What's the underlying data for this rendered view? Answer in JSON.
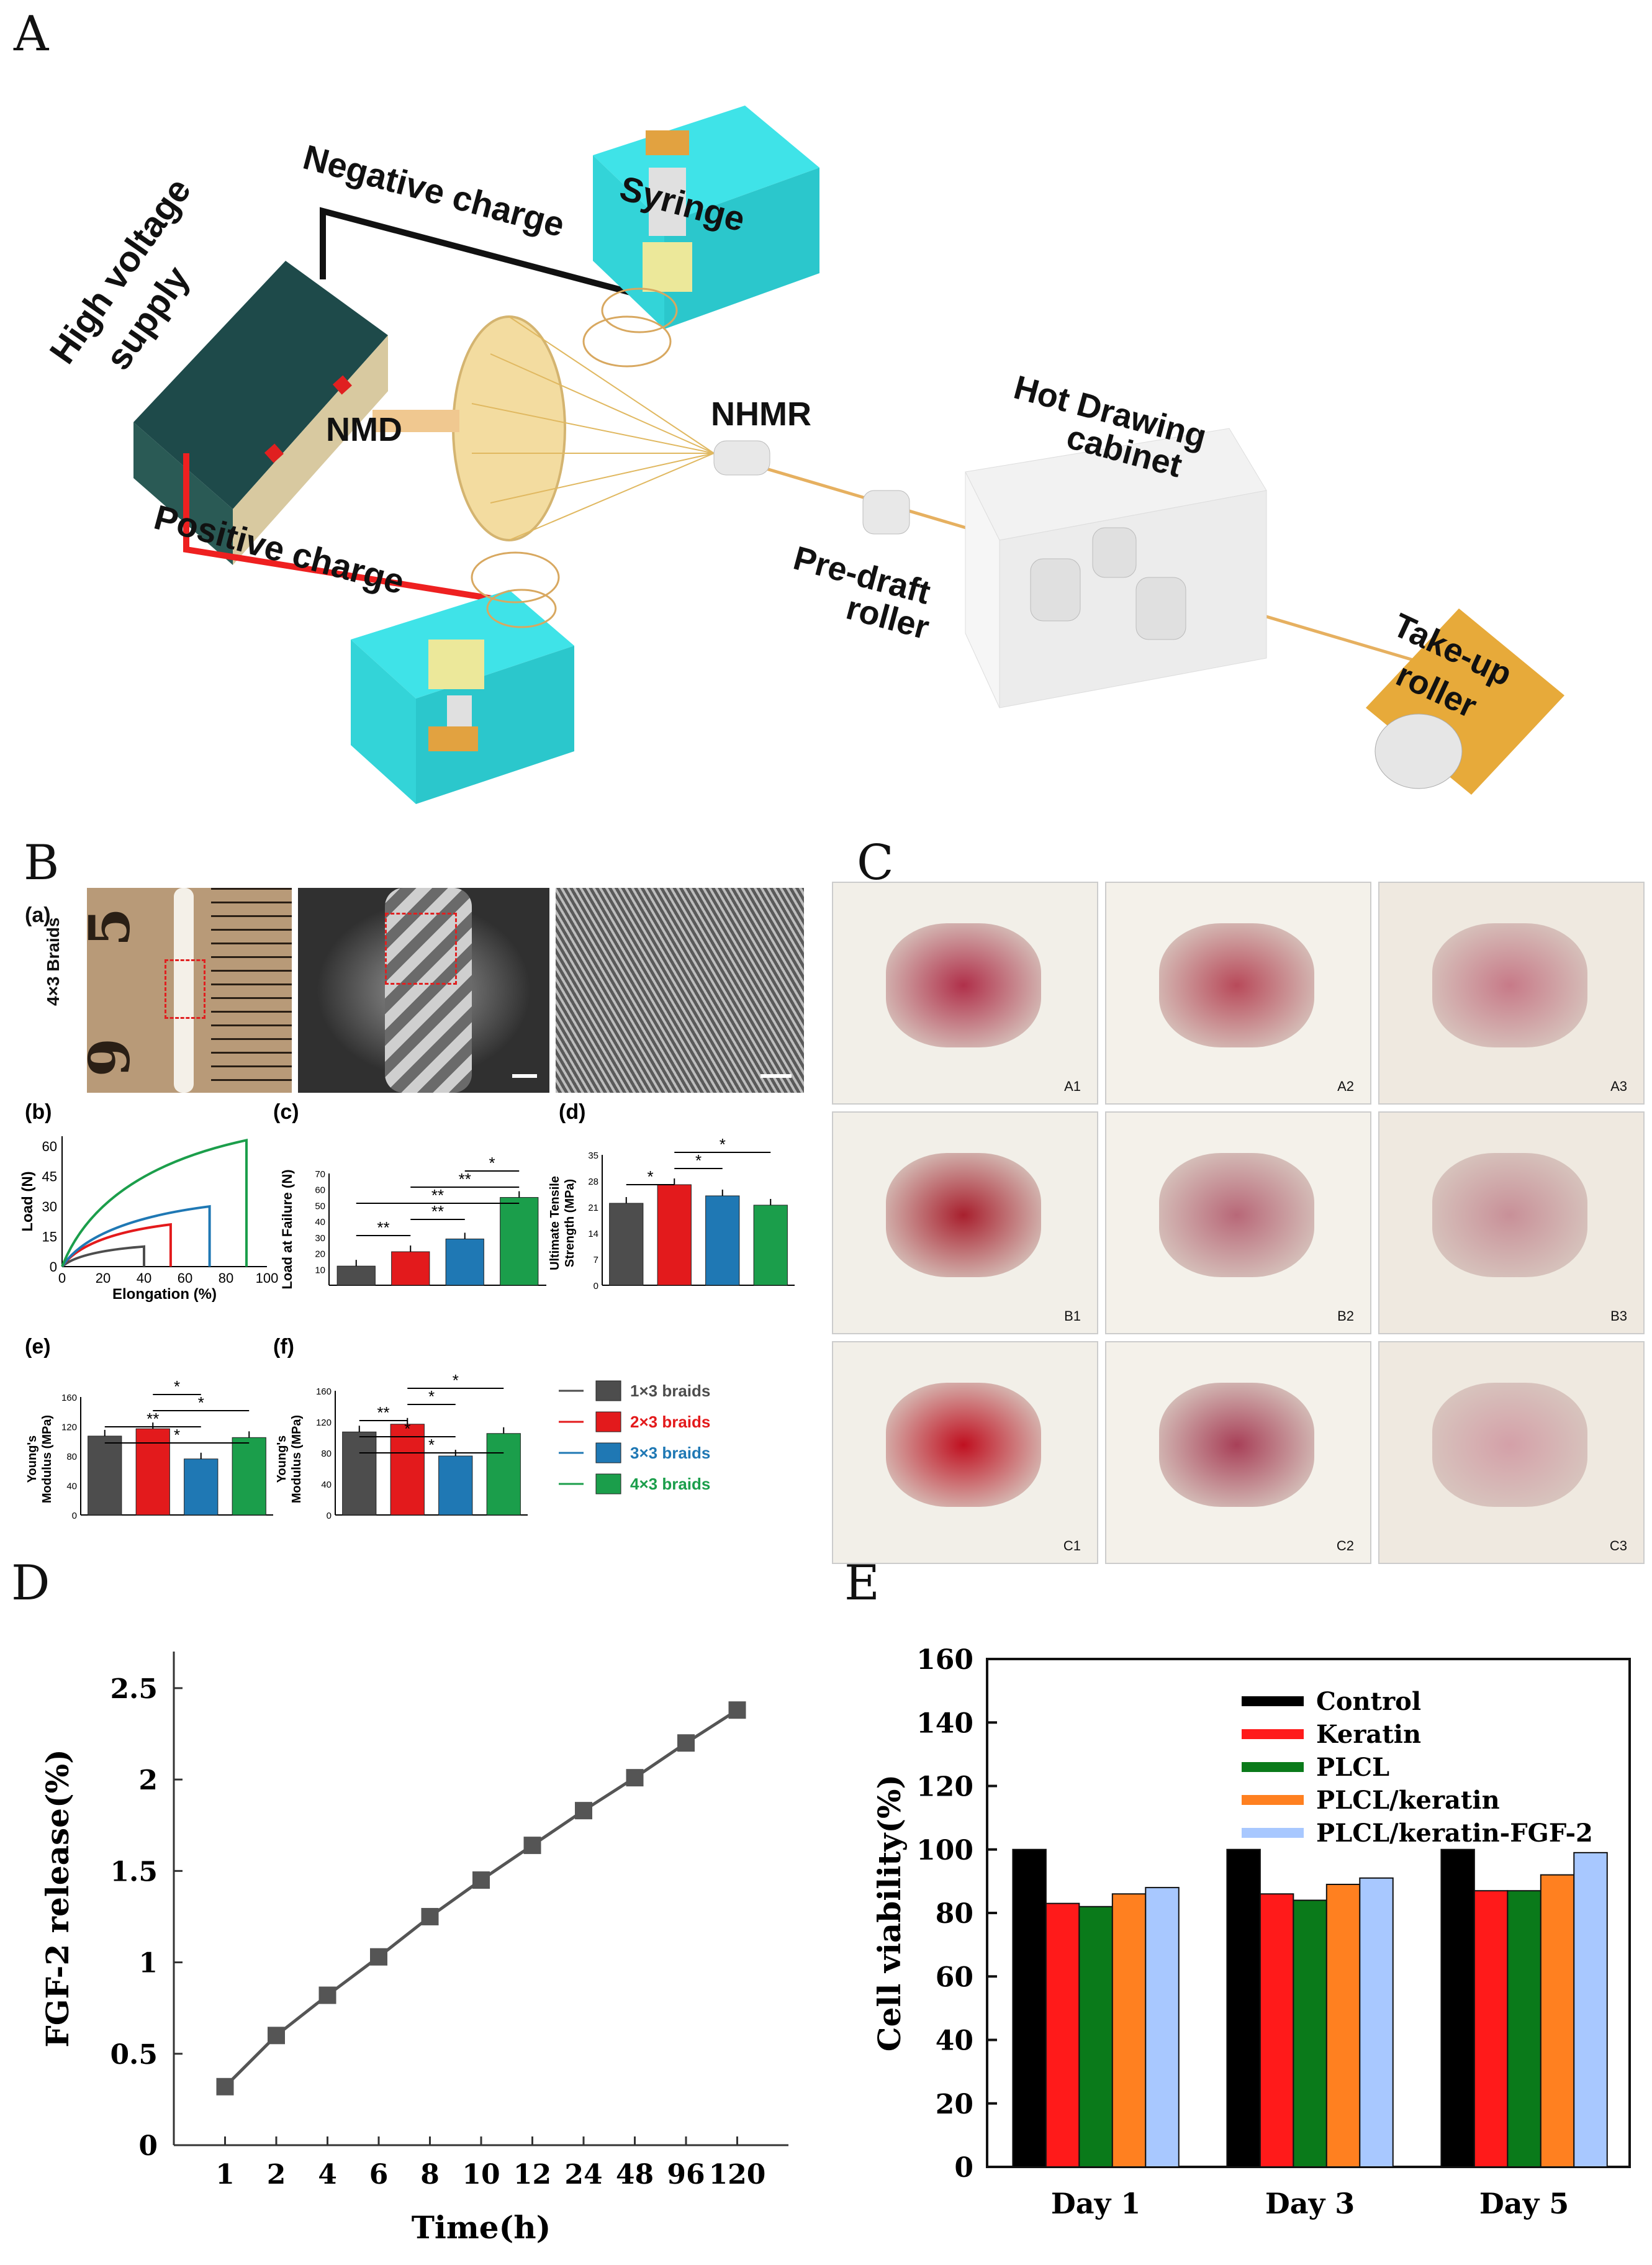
{
  "panels": {
    "A": "A",
    "B": "B",
    "C": "C",
    "D": "D",
    "E": "E"
  },
  "schematic": {
    "high_voltage": "High voltage",
    "supply": "supply",
    "negative_charge": "Negative  charge",
    "positive_charge": "Positive  charge",
    "syringe": "Syringe",
    "nmd": "NMD",
    "nhmr": "NHMR",
    "hot_drawing": "Hot Drawing",
    "cabinet": "cabinet",
    "predraft": "Pre-draft",
    "predraft_roller": "roller",
    "takeup": "Take-up",
    "takeup_roller": "roller"
  },
  "panelB": {
    "sub_a": "(a)",
    "sub_b": "(b)",
    "sub_c": "(c)",
    "sub_d": "(d)",
    "sub_e": "(e)",
    "sub_f": "(f)",
    "braid_label": "4×3 Braids",
    "ruler_top": "5",
    "ruler_bottom": "9",
    "b_xlabel": "Elongation (%)",
    "b_ylabel": "Load (N)",
    "c_ylabel": "Load at Failure (N)",
    "d_ylabel1": "Ultimate Tensile",
    "d_ylabel2": "Strength (MPa)",
    "ef_ylabel1": "Young's",
    "ef_ylabel2": "Modulus (MPa)",
    "legend": [
      "1×3 braids",
      "2×3 braids",
      "3×3 braids",
      "4×3 braids"
    ],
    "colors": [
      "#4d4d4d",
      "#e31a1c",
      "#1f78b4",
      "#1b9e4b"
    ]
  },
  "panelC": {
    "tags": [
      "A1",
      "A2",
      "A3",
      "B1",
      "B2",
      "B3",
      "C1",
      "C2",
      "C3"
    ]
  },
  "chart_data": [
    {
      "id": "B-b",
      "type": "line",
      "xlabel": "Elongation (%)",
      "ylabel": "Load (N)",
      "xlim": [
        0,
        100
      ],
      "ylim": [
        0,
        65
      ],
      "xticks": [
        0,
        20,
        40,
        60,
        80,
        100
      ],
      "yticks": [
        0,
        15,
        30,
        45,
        60
      ],
      "series": [
        {
          "name": "1×3 braids",
          "end_x": 40,
          "end_y": 10
        },
        {
          "name": "2×3 braids",
          "end_x": 53,
          "end_y": 21
        },
        {
          "name": "3×3 braids",
          "end_x": 72,
          "end_y": 30
        },
        {
          "name": "4×3 braids",
          "end_x": 90,
          "end_y": 63
        }
      ]
    },
    {
      "id": "B-c",
      "type": "bar",
      "ylabel": "Load at Failure (N)",
      "ylim": [
        0,
        70
      ],
      "yticks": [
        10,
        20,
        30,
        40,
        50,
        60,
        70
      ],
      "categories": [
        "1×3 braids",
        "2×3 braids",
        "3×3 braids",
        "4×3 braids"
      ],
      "values": [
        12,
        21,
        29,
        55
      ],
      "significance": [
        "**",
        "**",
        "**",
        "**",
        "*"
      ]
    },
    {
      "id": "B-d",
      "type": "bar",
      "ylabel": "Ultimate Tensile Strength (MPa)",
      "ylim": [
        0,
        35
      ],
      "yticks": [
        0,
        7,
        14,
        21,
        28,
        35
      ],
      "categories": [
        "1×3 braids",
        "2×3 braids",
        "3×3 braids",
        "4×3 braids"
      ],
      "values": [
        22,
        27,
        24,
        21.5
      ],
      "significance": [
        "*",
        "*",
        "*"
      ]
    },
    {
      "id": "B-e",
      "type": "bar",
      "ylabel": "Young's Modulus (MPa)",
      "ylim": [
        0,
        160
      ],
      "yticks": [
        0,
        40,
        80,
        120,
        160
      ],
      "categories": [
        "1×3 braids",
        "2×3 braids",
        "3×3 braids",
        "4×3 braids"
      ],
      "values": [
        107,
        117,
        76,
        105
      ],
      "significance": [
        "*",
        "**",
        "*",
        "*"
      ]
    },
    {
      "id": "B-f",
      "type": "bar",
      "ylabel": "Young's Modulus (MPa)",
      "ylim": [
        0,
        160
      ],
      "yticks": [
        0,
        40,
        80,
        120,
        160
      ],
      "categories": [
        "1×3 braids",
        "2×3 braids",
        "3×3 braids",
        "4×3 braids"
      ],
      "values": [
        107,
        117,
        76,
        105
      ],
      "significance": [
        "*",
        "*",
        "**",
        "*",
        "*"
      ]
    },
    {
      "id": "D",
      "type": "line",
      "xlabel": "Time(h)",
      "ylabel": "FGF-2 release(%)",
      "categories": [
        "1",
        "2",
        "4",
        "6",
        "8",
        "10",
        "12",
        "24",
        "48",
        "96",
        "120"
      ],
      "values": [
        0.32,
        0.6,
        0.82,
        1.03,
        1.25,
        1.45,
        1.64,
        1.83,
        2.01,
        2.2,
        2.38
      ],
      "ylim": [
        0,
        2.7
      ],
      "yticks": [
        "0",
        "0.5",
        "1",
        "1.5",
        "2",
        "2.5"
      ]
    },
    {
      "id": "E",
      "type": "bar",
      "xlabel": "",
      "ylabel": "Cell viability(%)",
      "categories": [
        "Day 1",
        "Day 3",
        "Day 5"
      ],
      "ylim": [
        0,
        160
      ],
      "yticks": [
        "0",
        "20",
        "40",
        "60",
        "80",
        "100",
        "120",
        "140",
        "160"
      ],
      "series": [
        {
          "name": "Control",
          "color": "#000000",
          "values": [
            100,
            100,
            100
          ]
        },
        {
          "name": "Keratin",
          "color": "#ff1a1a",
          "values": [
            83,
            86,
            87
          ]
        },
        {
          "name": "PLCL",
          "color": "#0a7a1a",
          "values": [
            82,
            84,
            87
          ]
        },
        {
          "name": "PLCL/keratin",
          "color": "#ff8020",
          "values": [
            86,
            89,
            92
          ]
        },
        {
          "name": "PLCL/keratin-FGF-2",
          "color": "#a8c8ff",
          "values": [
            88,
            91,
            99
          ]
        }
      ]
    }
  ]
}
